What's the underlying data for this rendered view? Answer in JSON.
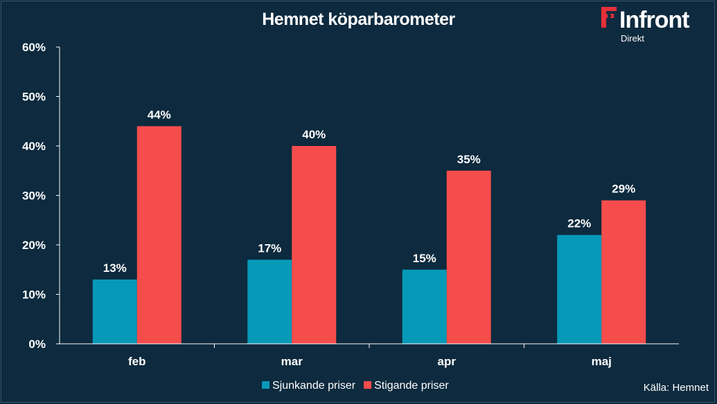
{
  "brand": {
    "name": "Infront",
    "sub": "Direkt",
    "colors": {
      "accent": "#e8303a"
    }
  },
  "source_label": "Källa:  Hemnet",
  "chart_data": {
    "type": "bar",
    "title": "Hemnet köparbarometer",
    "categories": [
      "feb",
      "mar",
      "apr",
      "maj"
    ],
    "series": [
      {
        "name": "Sjunkande priser",
        "values": [
          13,
          17,
          15,
          22
        ],
        "labels": [
          "13%",
          "17%",
          "15%",
          "22%"
        ],
        "color": "#0799b8"
      },
      {
        "name": "Stigande priser",
        "values": [
          44,
          40,
          35,
          29
        ],
        "labels": [
          "44%",
          "40%",
          "35%",
          "29%"
        ],
        "color": "#f54c4c"
      }
    ],
    "ylim": [
      0,
      60
    ],
    "yticks": [
      "0%",
      "10%",
      "20%",
      "30%",
      "40%",
      "50%",
      "60%"
    ],
    "grid": false,
    "legend": "bottom"
  }
}
